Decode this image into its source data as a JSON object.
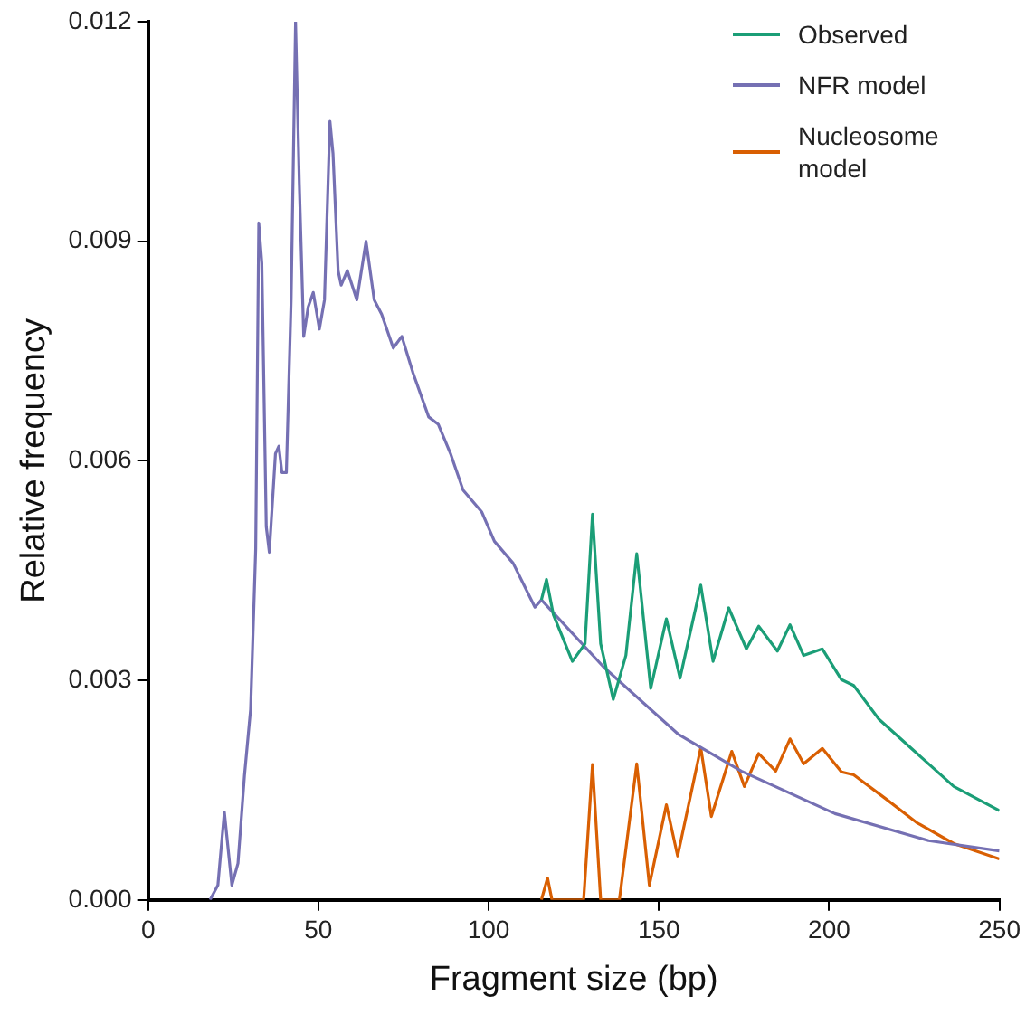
{
  "chart_data": {
    "type": "line",
    "xlabel": "Fragment size (bp)",
    "ylabel": "Relative frequency",
    "xlim": [
      0,
      250
    ],
    "xticks": [
      0,
      50,
      100,
      150,
      200,
      250
    ],
    "ylim": [
      0,
      0.012
    ],
    "yticks": [
      {
        "value": 0,
        "label": "0.000"
      },
      0.003,
      0.006,
      0.009,
      0.012
    ],
    "grid": false,
    "legend": "top right",
    "marker": "none",
    "line_style": "solid",
    "series": [
      {
        "name": "Observed",
        "color": "#1b9e77",
        "x": [
          115.5,
          117,
          119,
          124.6,
          128.3,
          130.5,
          132.9,
          136.6,
          140.3,
          143.5,
          147.6,
          152.2,
          156.2,
          162.3,
          165.9,
          170.5,
          175.7,
          179.3,
          184.8,
          188.5,
          192.5,
          198,
          203.6,
          207.2,
          214.6,
          225.6,
          236.6,
          250
        ],
        "values": [
          0.0041,
          0.00438,
          0.0039,
          0.00326,
          0.0035,
          0.00527,
          0.0035,
          0.00274,
          0.00334,
          0.00473,
          0.00289,
          0.00384,
          0.00303,
          0.0043,
          0.00326,
          0.00399,
          0.00343,
          0.00374,
          0.0034,
          0.00376,
          0.00334,
          0.00343,
          0.00301,
          0.00293,
          0.00247,
          0.00201,
          0.00155,
          0.00122
        ]
      },
      {
        "name": "NFR model",
        "color": "#7570b3",
        "x": [
          18.2,
          20.5,
          22.4,
          24.6,
          26.4,
          28.3,
          30.1,
          31.6,
          32.5,
          33.4,
          34.7,
          35.6,
          37.4,
          38.4,
          39.3,
          40.6,
          42,
          43.3,
          44.4,
          45.7,
          47,
          48.5,
          50.3,
          51.8,
          53.4,
          54.3,
          55.8,
          56.7,
          58.5,
          61.3,
          64,
          66.4,
          68.6,
          72,
          74.5,
          77.8,
          82.4,
          85.2,
          88.8,
          92.5,
          98,
          101.7,
          107.2,
          113.6,
          115.5,
          133.8,
          155.8,
          174.2,
          201.7,
          229.2,
          250
        ],
        "values": [
          0,
          0.0002,
          0.0012,
          0.0002,
          0.0005,
          0.0017,
          0.0026,
          0.0048,
          0.00925,
          0.0087,
          0.0051,
          0.00475,
          0.0061,
          0.0062,
          0.00584,
          0.00584,
          0.0082,
          0.012,
          0.0098,
          0.0077,
          0.0081,
          0.0083,
          0.0078,
          0.0082,
          0.01064,
          0.0102,
          0.0086,
          0.0084,
          0.0086,
          0.0082,
          0.009,
          0.0082,
          0.008,
          0.00754,
          0.0077,
          0.0072,
          0.0066,
          0.0065,
          0.0061,
          0.0056,
          0.0053,
          0.0049,
          0.0046,
          0.004,
          0.0041,
          0.00318,
          0.00226,
          0.00176,
          0.00118,
          0.00081,
          0.00067
        ]
      },
      {
        "name": "Nucleosome model",
        "color": "#d95f02",
        "x": [
          115.5,
          117.3,
          118.6,
          127.9,
          130.5,
          132.9,
          138.4,
          143.5,
          147.2,
          152.2,
          155.5,
          162.3,
          165.4,
          171.4,
          175.1,
          179.3,
          184.3,
          188.5,
          192.5,
          198,
          203.6,
          207.2,
          216.4,
          225.6,
          236.6,
          250
        ],
        "values": [
          0,
          0.0003,
          0,
          0,
          0.00185,
          0,
          0,
          0.00186,
          0.0002,
          0.0013,
          0.0006,
          0.00208,
          0.00114,
          0.00203,
          0.00155,
          0.002,
          0.00176,
          0.0022,
          0.00186,
          0.00207,
          0.00175,
          0.00171,
          0.00139,
          0.00106,
          0.00077,
          0.00056
        ]
      }
    ]
  }
}
